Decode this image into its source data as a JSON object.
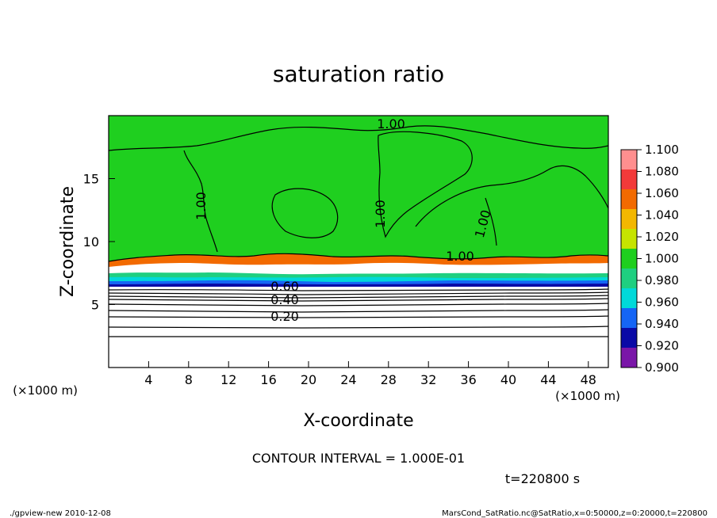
{
  "chart_data": {
    "type": "heatmap",
    "title": "saturation ratio",
    "xlabel": "X-coordinate",
    "ylabel": "Z-coordinate",
    "x_unit_left": "(×1000 m)",
    "x_unit_right": "(×1000 m)",
    "xlim": [
      0,
      50
    ],
    "ylim": [
      0,
      20
    ],
    "x_ticks": [
      4,
      8,
      12,
      16,
      20,
      24,
      28,
      32,
      36,
      40,
      44,
      48
    ],
    "y_ticks": [
      5,
      10,
      15
    ],
    "colorbar": {
      "labels": [
        "1.100",
        "1.080",
        "1.060",
        "1.040",
        "1.020",
        "1.000",
        "0.980",
        "0.960",
        "0.940",
        "0.920",
        "0.900"
      ],
      "colors": [
        "#ff8f8f",
        "#f23a3a",
        "#f26a00",
        "#f3b700",
        "#c6e400",
        "#1fcf1f",
        "#1fcf80",
        "#00d9d9",
        "#1565f5",
        "#0a0aa6",
        "#7a16a8"
      ]
    },
    "contour_labels": [
      "1.00",
      "1.00",
      "1.00",
      "1.00",
      "1.00",
      "0.60",
      "0.40",
      "0.20"
    ],
    "contour_interval_text": "CONTOUR INTERVAL = 1.000E-01",
    "time_text": "t=220800 s"
  },
  "footer": {
    "left": "./gpview-new  2010-12-08",
    "right": "MarsCond_SatRatio.nc@SatRatio,x=0:50000,z=0:20000,t=220800"
  }
}
